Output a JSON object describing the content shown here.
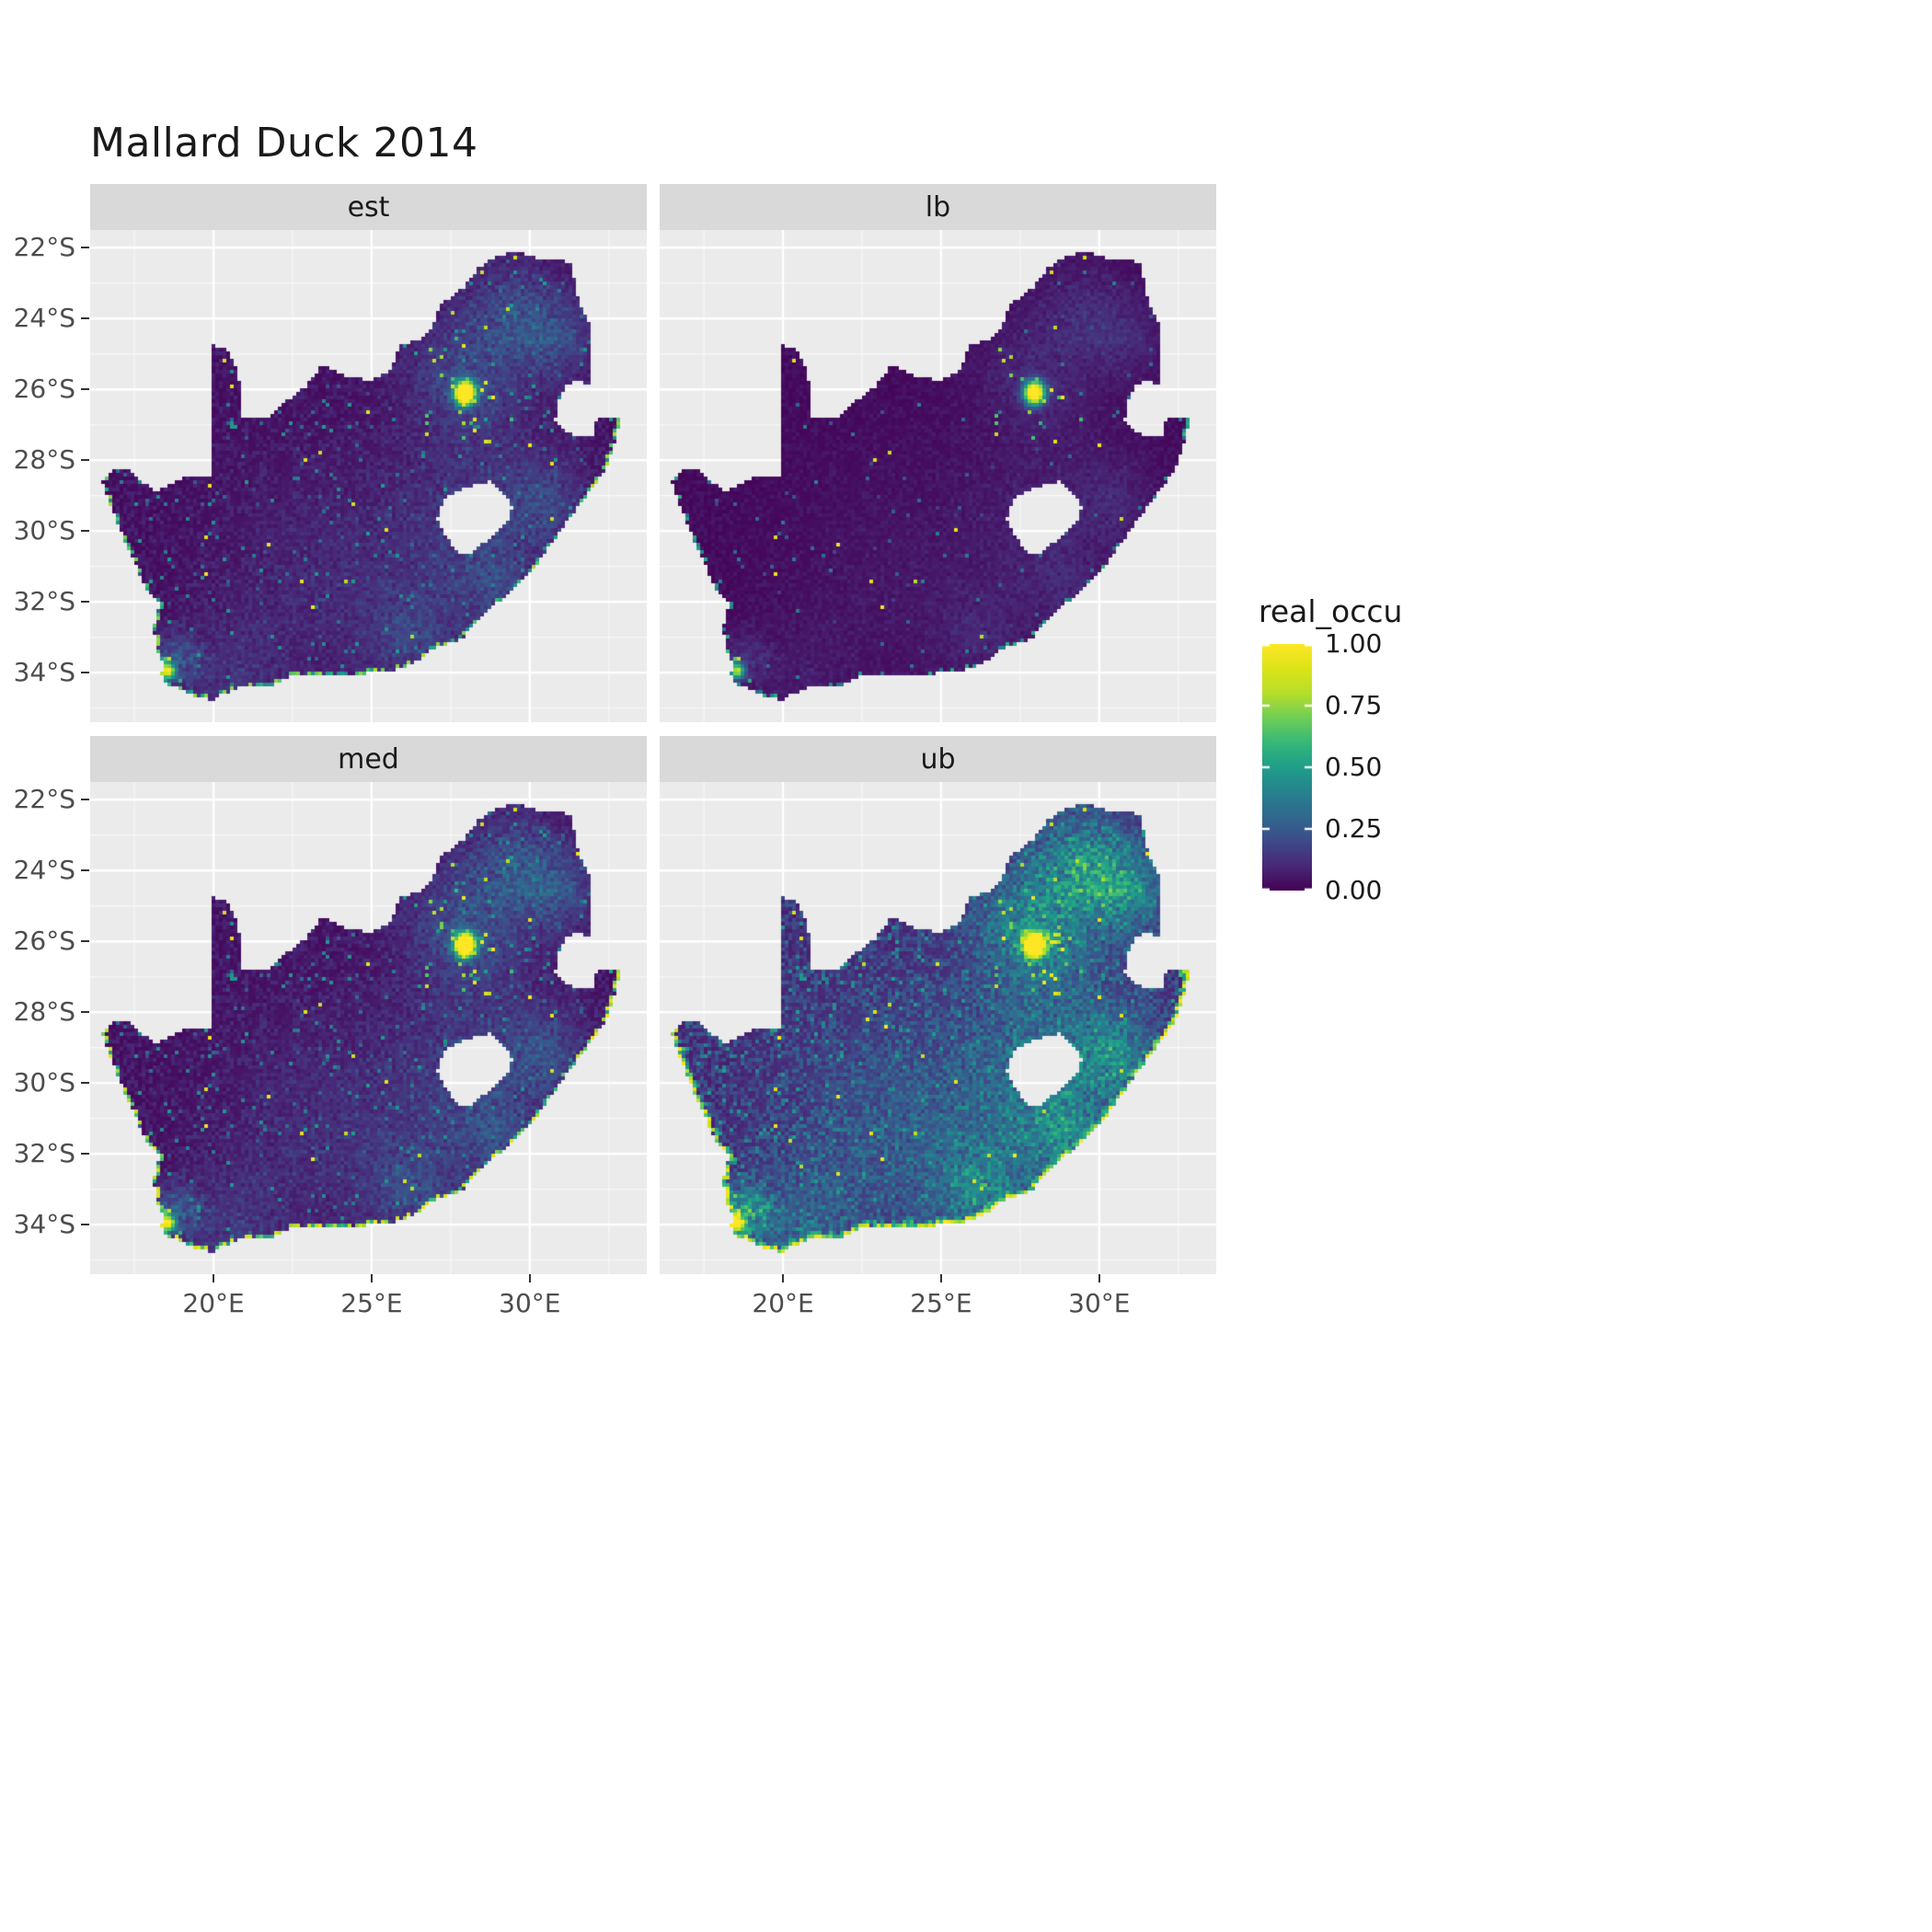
{
  "page": {
    "background": "#ffffff"
  },
  "chart_data": {
    "type": "heatmap",
    "title": "Mallard Duck 2014",
    "region": "South Africa raster occupancy map, 2x2 facet grid",
    "legend": {
      "title": "real_occu",
      "ticks": [
        {
          "label": "1.00",
          "value": 1.0
        },
        {
          "label": "0.75",
          "value": 0.75
        },
        {
          "label": "0.50",
          "value": 0.5
        },
        {
          "label": "0.25",
          "value": 0.25
        },
        {
          "label": "0.00",
          "value": 0.0
        }
      ]
    },
    "facets": [
      {
        "label": "est",
        "base": 0.015,
        "noise": 0.08,
        "speckle_p": 0.03,
        "speckle_amp": 0.5,
        "dot_p": 0.003,
        "patch_mul": 0.8,
        "core_mul": 1.0,
        "cluster_mul": 1.0,
        "coast_p": 0.55,
        "coast_amp": 0.8,
        "band2_p": 0.0
      },
      {
        "label": "lb",
        "base": 0.008,
        "noise": 0.05,
        "speckle_p": 0.01,
        "speckle_amp": 0.4,
        "dot_p": 0.0015,
        "patch_mul": 0.4,
        "core_mul": 0.85,
        "cluster_mul": 0.6,
        "coast_p": 0.3,
        "coast_amp": 0.6,
        "band2_p": 0.0
      },
      {
        "label": "med",
        "base": 0.018,
        "noise": 0.09,
        "speckle_p": 0.038,
        "speckle_amp": 0.5,
        "dot_p": 0.0035,
        "patch_mul": 0.9,
        "core_mul": 1.05,
        "cluster_mul": 1.1,
        "coast_p": 0.7,
        "coast_amp": 0.95,
        "band2_p": 0.0
      },
      {
        "label": "ub",
        "base": 0.07,
        "noise": 0.18,
        "speckle_p": 0.12,
        "speckle_amp": 0.5,
        "dot_p": 0.005,
        "patch_mul": 1.6,
        "core_mul": 1.1,
        "cluster_mul": 1.6,
        "coast_p": 0.97,
        "coast_amp": 1.0,
        "band2_p": 0.5
      }
    ],
    "x_ticks": [
      {
        "label": "20°E",
        "value": 20
      },
      {
        "label": "25°E",
        "value": 25
      },
      {
        "label": "30°E",
        "value": 30
      }
    ],
    "y_ticks": [
      {
        "label": "22°S",
        "value": -22
      },
      {
        "label": "24°S",
        "value": -24
      },
      {
        "label": "26°S",
        "value": -26
      },
      {
        "label": "28°S",
        "value": -28
      },
      {
        "label": "30°S",
        "value": -30
      },
      {
        "label": "32°S",
        "value": -32
      },
      {
        "label": "34°S",
        "value": -34
      }
    ],
    "x_minor": [
      17.5,
      22.5,
      27.5,
      32.5
    ],
    "y_minor": [
      -23,
      -25,
      -27,
      -29,
      -31,
      -33,
      -35
    ],
    "x_range": [
      16.1,
      33.7
    ],
    "y_range": [
      -21.5,
      -35.4
    ],
    "colors": {
      "panel_bg": "#EBEBEB",
      "strip_bg": "#D9D9D9",
      "grid": "#FFFFFF",
      "axis_text": "#4D4D4D",
      "strip_text": "#1A1A1A",
      "title_text": "#1A1A1A",
      "tick_mark": "#333333"
    },
    "viridis": [
      [
        0.0,
        "#440154"
      ],
      [
        0.1,
        "#482878"
      ],
      [
        0.2,
        "#3E4A89"
      ],
      [
        0.3,
        "#31688E"
      ],
      [
        0.4,
        "#26828E"
      ],
      [
        0.5,
        "#1F9E89"
      ],
      [
        0.6,
        "#35B779"
      ],
      [
        0.7,
        "#6ECE58"
      ],
      [
        0.8,
        "#B5DE2B"
      ],
      [
        0.9,
        "#DCE319"
      ],
      [
        1.0,
        "#FDE725"
      ]
    ],
    "boundary": [
      [
        16.45,
        -28.58
      ],
      [
        16.8,
        -28.3
      ],
      [
        17.2,
        -28.2
      ],
      [
        17.6,
        -28.55
      ],
      [
        18.2,
        -28.87
      ],
      [
        19.0,
        -28.5
      ],
      [
        19.6,
        -28.5
      ],
      [
        19.99,
        -28.43
      ],
      [
        19.99,
        -24.77
      ],
      [
        20.45,
        -24.85
      ],
      [
        20.8,
        -25.6
      ],
      [
        20.85,
        -26.4
      ],
      [
        20.9,
        -26.83
      ],
      [
        21.65,
        -26.85
      ],
      [
        22.2,
        -26.4
      ],
      [
        22.9,
        -25.95
      ],
      [
        23.45,
        -25.3
      ],
      [
        24.2,
        -25.63
      ],
      [
        25.0,
        -25.75
      ],
      [
        25.6,
        -25.47
      ],
      [
        25.9,
        -24.73
      ],
      [
        26.5,
        -24.6
      ],
      [
        26.9,
        -24.25
      ],
      [
        27.2,
        -23.6
      ],
      [
        27.95,
        -23.1
      ],
      [
        28.35,
        -22.58
      ],
      [
        29.05,
        -22.2
      ],
      [
        29.65,
        -22.13
      ],
      [
        30.3,
        -22.3
      ],
      [
        31.0,
        -22.35
      ],
      [
        31.3,
        -22.42
      ],
      [
        31.55,
        -23.5
      ],
      [
        31.95,
        -24.3
      ],
      [
        31.97,
        -25.1
      ],
      [
        31.95,
        -25.95
      ],
      [
        31.45,
        -25.72
      ],
      [
        31.1,
        -25.95
      ],
      [
        30.92,
        -26.35
      ],
      [
        30.8,
        -26.85
      ],
      [
        31.1,
        -27.2
      ],
      [
        31.6,
        -27.32
      ],
      [
        31.97,
        -27.31
      ],
      [
        32.13,
        -26.85
      ],
      [
        32.9,
        -26.85
      ],
      [
        32.65,
        -27.6
      ],
      [
        32.35,
        -28.35
      ],
      [
        31.75,
        -29.05
      ],
      [
        31.05,
        -29.9
      ],
      [
        30.3,
        -30.85
      ],
      [
        29.35,
        -31.75
      ],
      [
        28.55,
        -32.35
      ],
      [
        27.85,
        -33.05
      ],
      [
        27.0,
        -33.3
      ],
      [
        26.3,
        -33.75
      ],
      [
        25.65,
        -33.95
      ],
      [
        25.0,
        -34.0
      ],
      [
        24.2,
        -34.1
      ],
      [
        23.35,
        -34.1
      ],
      [
        22.5,
        -34.05
      ],
      [
        21.8,
        -34.4
      ],
      [
        20.9,
        -34.4
      ],
      [
        20.3,
        -34.6
      ],
      [
        19.95,
        -34.8
      ],
      [
        19.3,
        -34.62
      ],
      [
        18.8,
        -34.4
      ],
      [
        18.45,
        -34.3
      ],
      [
        18.35,
        -34.05
      ],
      [
        18.45,
        -33.85
      ],
      [
        18.25,
        -33.45
      ],
      [
        18.1,
        -32.75
      ],
      [
        18.3,
        -32.05
      ],
      [
        17.85,
        -31.6
      ],
      [
        17.35,
        -30.6
      ],
      [
        17.0,
        -29.85
      ],
      [
        16.7,
        -29.2
      ]
    ],
    "coast_start_index": 43,
    "lesotho_hole": [
      [
        28.2,
        -28.72
      ],
      [
        28.75,
        -28.6
      ],
      [
        29.15,
        -28.9
      ],
      [
        29.45,
        -29.32
      ],
      [
        29.3,
        -29.78
      ],
      [
        28.85,
        -30.1
      ],
      [
        28.15,
        -30.65
      ],
      [
        27.75,
        -30.62
      ],
      [
        27.4,
        -30.2
      ],
      [
        27.05,
        -29.68
      ],
      [
        27.3,
        -29.1
      ],
      [
        27.75,
        -28.88
      ]
    ],
    "hotspots": [
      {
        "name": "gauteng",
        "lon": 27.95,
        "lat": -26.1,
        "sigma": 0.22,
        "amp": 1.5,
        "scatter_radius": 1.7,
        "scatter_p": 0.13
      },
      {
        "name": "cape-town",
        "lon": 18.55,
        "lat": -33.95,
        "sigma": 0.16,
        "amp": 0.9,
        "scatter_radius": 0.8,
        "scatter_p": 0.1
      }
    ],
    "patches": [
      [
        28.1,
        -25.6,
        1.4,
        0.22
      ],
      [
        29.7,
        -23.8,
        1.0,
        0.2
      ],
      [
        31.0,
        -24.6,
        0.8,
        0.18
      ],
      [
        30.5,
        -29.2,
        1.0,
        0.2
      ],
      [
        28.9,
        -31.6,
        0.8,
        0.16
      ],
      [
        26.4,
        -33.0,
        1.0,
        0.16
      ],
      [
        24.0,
        -31.5,
        2.6,
        0.1
      ],
      [
        28.0,
        -29.8,
        1.4,
        0.14
      ],
      [
        18.9,
        -33.6,
        0.5,
        0.22
      ],
      [
        20.5,
        -34.2,
        1.2,
        0.1
      ]
    ]
  }
}
